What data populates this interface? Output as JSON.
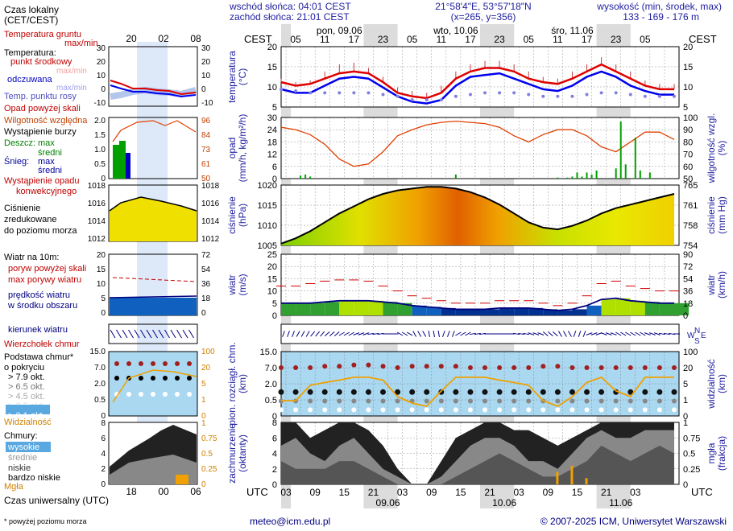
{
  "header": {
    "sunrise": "wschód słońca: 04:01 CEST",
    "sunset": "zachód słońca: 21:01 CEST",
    "coords": "21°58'4\"E, 53°57'18\"N",
    "grid": "(x=265, y=356)",
    "altitude_title": "wysokość (min, środek, max)",
    "altitude_values": "133 - 169 - 176 m",
    "cest_label": "CEST",
    "utc_label": "UTC"
  },
  "top_axis": {
    "hour_labels": [
      "05",
      "11",
      "17",
      "23",
      "05",
      "11",
      "17",
      "23",
      "05",
      "11",
      "17",
      "23",
      "05"
    ],
    "day_labels": [
      "pon, 09.06",
      "wto, 10.06",
      "śro, 11.06"
    ]
  },
  "bottom_axis": {
    "hour_labels": [
      "03",
      "09",
      "15",
      "21",
      "03",
      "09",
      "15",
      "21",
      "03",
      "09",
      "15",
      "21",
      "03"
    ],
    "date_labels": [
      "09.06",
      "10.06",
      "11.06"
    ]
  },
  "legend": {
    "local_time_l1": "Czas lokalny",
    "local_time_l2": "(CET/CEST)",
    "local_hours": [
      "20",
      "02",
      "08"
    ],
    "soil_temp_l1": "Temperatura gruntu",
    "soil_temp_l2": "max/min",
    "temp_title": "Temperatura:",
    "temp_mid": "punkt środkowy",
    "temp_mid_ghost": "max/min",
    "temp_felt": "odczuwana",
    "temp_felt_ghost": "max/min",
    "dew_point": "Temp. punktu rosy",
    "temp_ticks": [
      "30",
      "20",
      "10",
      "0",
      "-10"
    ],
    "precip_above": "Opad powyżej skali",
    "humidity": "Wilgotność względna",
    "storm": "Wystąpienie burzy",
    "rain": "Deszcz:",
    "snow": "Śnieg:",
    "max_word": "max",
    "mid_word": "średni",
    "precip_occ_l1": "Wystąpienie opadu",
    "precip_occ_l2": "konwekcyjnego",
    "precip_ticks": [
      "2.0",
      "1.5",
      "1.0",
      "0.5",
      "0"
    ],
    "humidity_ticks": [
      "96",
      "84",
      "73",
      "61",
      "50"
    ],
    "pressure_l1": "Ciśnienie",
    "pressure_l2": "zredukowane",
    "pressure_l3": "do poziomu morza",
    "pressure_ticks": [
      "1018",
      "1016",
      "1014",
      "1012"
    ],
    "wind_title": "Wiatr na 10m:",
    "gust_above": "poryw powyżej skali",
    "gust_max": "max porywy wiatru",
    "wind_avg_l1": "prędkość wiatru",
    "wind_avg_l2": "w środku obszaru",
    "wind_ticks_l": [
      "20",
      "15",
      "10",
      "5",
      "0"
    ],
    "wind_ticks_r": [
      "72",
      "54",
      "36",
      "18",
      "0"
    ],
    "wind_dir": "kierunek wiatru",
    "cloud_top": "Wierzchołek chmur",
    "cloud_base_l1": "Podstawa chmur*",
    "cloud_base_l2": "o pokryciu",
    "okta": [
      "> 7.9 okt.",
      "> 6.5 okt.",
      "> 4.5 okt.",
      "> 2.5 okt.",
      "> 0.1 okt."
    ],
    "visibility": "Widzialność",
    "cb_ticks": [
      "15.0",
      "7.0",
      "2.0",
      "0.5",
      "0"
    ],
    "vis_ticks": [
      "100",
      "20",
      "5",
      "1",
      "0"
    ],
    "clouds_title": "Chmury:",
    "cloud_high": "wysokie",
    "cloud_mid": "średnie",
    "cloud_low": "niskie",
    "cloud_vlow": "bardzo niskie",
    "fog": "Mgła",
    "cloud_ticks_l": [
      "8",
      "6",
      "4",
      "2",
      "0"
    ],
    "cloud_ticks_r": [
      "1",
      "0.75",
      "0.5",
      "0.25",
      "0"
    ],
    "utc_title": "Czas uniwersalny (UTC)",
    "utc_hours": [
      "18",
      "00",
      "06"
    ],
    "footnote": "* powyżej poziomu morza"
  },
  "panels": {
    "temp": {
      "l1": "temperatura",
      "l2": "(°C)",
      "ticks": [
        "20",
        "15",
        "10",
        "5"
      ]
    },
    "precip": {
      "l1": "opad",
      "l2": "(mm/h, kg/m²/h)",
      "r1": "wilgotność wzgl.",
      "r2": "(%)",
      "ticks": [
        "30",
        "24",
        "18",
        "12",
        "6",
        "0"
      ],
      "rticks": [
        "100",
        "90",
        "80",
        "70",
        "60",
        "50"
      ]
    },
    "pressure": {
      "l1": "ciśnienie",
      "l2": "(hPa)",
      "r1": "ciśnienie",
      "r2": "(mm Hg)",
      "ticks": [
        "1020",
        "1015",
        "1010",
        "1005"
      ],
      "rticks": [
        "765",
        "761",
        "758",
        "754"
      ]
    },
    "wind": {
      "l1": "wiatr",
      "l2": "(m/s)",
      "r1": "wiatr",
      "r2": "(km/h)",
      "ticks": [
        "25",
        "20",
        "15",
        "10",
        "5",
        "0"
      ],
      "rticks": [
        "90",
        "72",
        "54",
        "36",
        "18",
        "0"
      ]
    },
    "clouds": {
      "l1": "pion. rozciągł. chm.",
      "l2": "(km)",
      "r1": "widzialność",
      "r2": "(km)",
      "ticks": [
        "15.0",
        "7.0",
        "2.0",
        "0.5",
        "0"
      ],
      "rticks": [
        "100",
        "20",
        "5",
        "1",
        "0"
      ]
    },
    "cover": {
      "l1": "zachmurzenie",
      "l2": "(oktanty)",
      "r1": "mgła",
      "r2": "(frakcja)",
      "ticks": [
        "8",
        "6",
        "4",
        "2",
        "0"
      ],
      "rticks": [
        "1",
        "0.75",
        "0.5",
        "0.25",
        "0"
      ]
    }
  },
  "compass": {
    "n": "N",
    "w": "W",
    "s": "S",
    "e": "E"
  },
  "footer": {
    "email": "meteo@icm.edu.pl",
    "copyright": "© 2007-2025 ICM, Uniwersytet Warszawski"
  },
  "colors": {
    "temp": "#e00000",
    "felt": "#0000ee",
    "dew": "#8080e0",
    "humidity": "#e04000",
    "pressure_line": "#000000",
    "night": "#dcdcdc",
    "sky": "#aad8f0",
    "vis": "#f0a000",
    "rain": "#00a000",
    "cloud_low": "#555555",
    "cloud_mid": "#888888",
    "cloud_high": "#222222"
  },
  "chart_data": {
    "type": "meteogram",
    "x_unit": "hours from 2025-06-09 02:00 UTC",
    "x_range": [
      0,
      82
    ],
    "temperature": {
      "ylim": [
        5,
        22
      ],
      "x": [
        0,
        3,
        6,
        9,
        12,
        15,
        18,
        21,
        24,
        27,
        30,
        33,
        36,
        39,
        42,
        45,
        48,
        51,
        54,
        57,
        60,
        63,
        66,
        69,
        72,
        75,
        78,
        81
      ],
      "midpoint": [
        12,
        11,
        11.5,
        13,
        14.5,
        15,
        14.5,
        12,
        9,
        8,
        7.5,
        9,
        13,
        15,
        16,
        16,
        15,
        13,
        12,
        11.5,
        13,
        15,
        17,
        15,
        13,
        11,
        10,
        10
      ],
      "felt": [
        10,
        9,
        9,
        11,
        13,
        13.5,
        13,
        10.5,
        8,
        6.5,
        6,
        7,
        11,
        13.5,
        14,
        14.5,
        13,
        11.5,
        10,
        9.5,
        11,
        13.5,
        15,
        13.5,
        11,
        9.5,
        8.5,
        8.5
      ],
      "dew_point": [
        10,
        9.5,
        9,
        9,
        9,
        9,
        9,
        8.5,
        8,
        7,
        7,
        7,
        8,
        8.5,
        9,
        9,
        9,
        8.5,
        8,
        8,
        8,
        8.5,
        9,
        9,
        8.5,
        8,
        8,
        8
      ],
      "max": [
        13,
        12,
        12.5,
        15,
        17,
        17.5,
        16,
        13.5,
        10.5,
        9.5,
        9,
        11,
        15,
        17,
        18,
        18,
        17,
        15,
        13.5,
        13,
        15,
        17,
        19,
        17,
        15,
        12.5,
        11.5,
        11.5
      ]
    },
    "humidity": {
      "ylim": [
        50,
        100
      ],
      "x": [
        0,
        3,
        6,
        9,
        12,
        15,
        18,
        21,
        24,
        27,
        30,
        33,
        36,
        39,
        42,
        45,
        48,
        51,
        54,
        57,
        60,
        63,
        66,
        69,
        72,
        75,
        78,
        81
      ],
      "values": [
        92,
        90,
        86,
        78,
        66,
        60,
        62,
        72,
        85,
        90,
        94,
        96,
        97,
        96,
        95,
        92,
        85,
        80,
        86,
        90,
        90,
        85,
        76,
        72,
        80,
        88,
        88,
        82
      ]
    },
    "precip": {
      "ylim": [
        0,
        30
      ],
      "rain_x": [
        4,
        5,
        6,
        36,
        57,
        59,
        60,
        61,
        62,
        63,
        64,
        65,
        69,
        70,
        71,
        73,
        74,
        76
      ],
      "rain_values": [
        1.5,
        2,
        1,
        2,
        0.5,
        0.5,
        1,
        3,
        1,
        3,
        2,
        4,
        5,
        28,
        7,
        20,
        4,
        3
      ]
    },
    "pressure": {
      "ylim": [
        1005,
        1022
      ],
      "x": [
        0,
        3,
        6,
        9,
        12,
        15,
        18,
        21,
        24,
        27,
        30,
        33,
        36,
        39,
        42,
        45,
        48,
        51,
        54,
        57,
        60,
        63,
        66,
        69,
        72,
        75,
        78,
        81
      ],
      "values": [
        1005.5,
        1007,
        1009,
        1011.5,
        1014,
        1016,
        1018,
        1019.5,
        1020.5,
        1021,
        1021.5,
        1021.5,
        1021,
        1020,
        1018.5,
        1016.5,
        1014,
        1011.5,
        1010,
        1009.5,
        1010.5,
        1012,
        1014,
        1015.5,
        1016.5,
        1017.5,
        1018.5,
        1019.5
      ]
    },
    "wind": {
      "ylim": [
        0,
        25
      ],
      "x": [
        0,
        3,
        6,
        9,
        12,
        15,
        18,
        21,
        24,
        27,
        30,
        33,
        36,
        39,
        42,
        45,
        48,
        51,
        54,
        57,
        60,
        63,
        66,
        69,
        72,
        75,
        78,
        81
      ],
      "speed": [
        5,
        5,
        5,
        5.5,
        6,
        6,
        6,
        5.5,
        5,
        4,
        3.5,
        3,
        2.5,
        2.5,
        2.5,
        3,
        3,
        3,
        2.5,
        2,
        2.5,
        4,
        6.5,
        7,
        6,
        5.5,
        5,
        5
      ],
      "gust_max": [
        12,
        12,
        13,
        14,
        14.5,
        14.5,
        14,
        12,
        10,
        8,
        7,
        6,
        5,
        5,
        5,
        6,
        6,
        6,
        5,
        4,
        5,
        8,
        13,
        14,
        12,
        11,
        10,
        10
      ],
      "direction_deg": [
        200,
        210,
        220,
        230,
        240,
        250,
        260,
        270,
        300,
        330,
        350,
        20,
        60,
        80,
        90,
        90,
        100,
        110,
        130,
        150,
        200,
        250,
        290,
        300,
        300,
        290,
        280,
        270
      ]
    },
    "clouds": {
      "ylim_km": [
        0,
        15
      ],
      "x": [
        0,
        3,
        6,
        9,
        12,
        15,
        18,
        21,
        24,
        27,
        30,
        33,
        36,
        39,
        42,
        45,
        48,
        51,
        54,
        57,
        60,
        63,
        66,
        69,
        72,
        75,
        78,
        81
      ],
      "cloud_top_km": [
        7,
        7,
        7,
        7.5,
        7.5,
        8,
        8,
        7.5,
        7,
        7.5,
        7.5,
        7.5,
        7.5,
        7,
        7,
        7,
        7,
        7,
        7.5,
        7.5,
        7,
        7,
        7,
        7,
        7,
        7,
        7,
        7
      ],
      "visibility_km": [
        2,
        2,
        8,
        10,
        12,
        15,
        15,
        12,
        3,
        1.5,
        1,
        5,
        15,
        15,
        15,
        12,
        10,
        8,
        2,
        1,
        3,
        10,
        15,
        5,
        3,
        15,
        15,
        15
      ]
    },
    "cloud_cover": {
      "ylim": [
        0,
        8
      ],
      "x": [
        0,
        3,
        6,
        9,
        12,
        15,
        18,
        21,
        24,
        27,
        30,
        33,
        36,
        39,
        42,
        45,
        48,
        51,
        54,
        57,
        60,
        63,
        66,
        69,
        72,
        75,
        78,
        81
      ],
      "high": [
        8,
        8,
        6,
        7,
        8,
        8,
        7,
        5,
        2,
        0,
        0,
        3,
        6,
        7,
        8,
        8,
        7,
        7,
        6,
        5,
        6,
        7,
        8,
        8,
        8,
        8,
        8,
        8
      ],
      "mid": [
        5,
        6,
        4,
        3,
        5,
        6,
        4,
        2,
        1,
        0,
        0,
        1,
        3,
        5,
        6,
        6,
        5,
        3,
        3,
        2,
        4,
        6,
        7,
        6,
        6,
        7,
        7,
        7
      ],
      "low": [
        3,
        2,
        2,
        2,
        3,
        3,
        2,
        1,
        0,
        0,
        0,
        0,
        1,
        2,
        3,
        4,
        3,
        2,
        1,
        1,
        2,
        3,
        5,
        4,
        3,
        4,
        5,
        4
      ],
      "fog": [
        0,
        0,
        0,
        0,
        0,
        0,
        0,
        0,
        0,
        0,
        0,
        0,
        0,
        0,
        0,
        0,
        0,
        0,
        0,
        0.2,
        0.3,
        0.1,
        0,
        0,
        0,
        0,
        0,
        0
      ]
    }
  }
}
